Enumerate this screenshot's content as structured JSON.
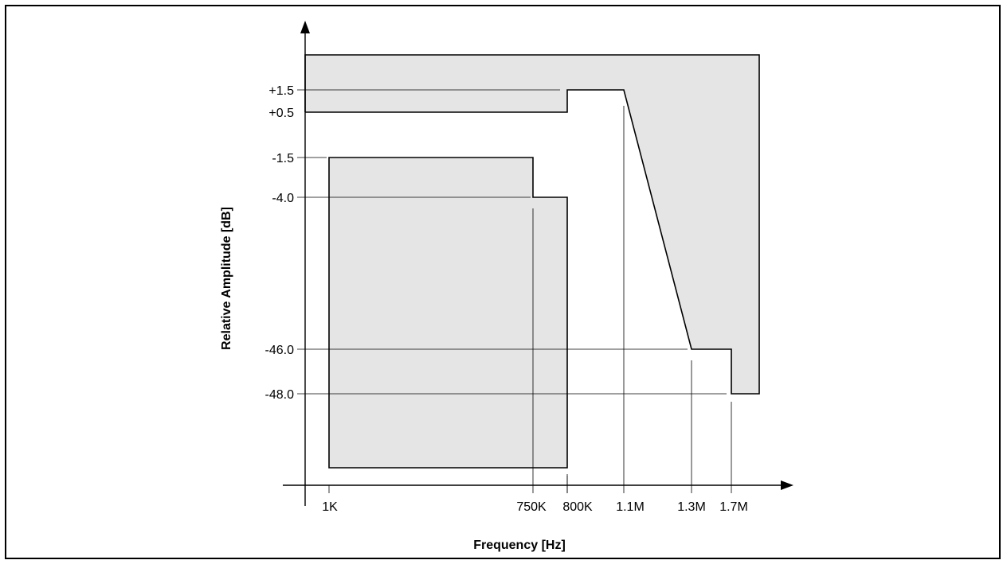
{
  "chart_data": {
    "type": "line",
    "title": "",
    "xlabel": "Frequency [Hz]",
    "ylabel": "Relative Amplitude [dB]",
    "x_tick_labels": [
      "1K",
      "750K",
      "800K",
      "1.1M",
      "1.3M",
      "1.7M"
    ],
    "y_tick_labels": [
      "+1.5",
      "+0.5",
      "-1.5",
      "-4.0",
      "-46.0",
      "-48.0"
    ],
    "series": [
      {
        "role": "upper-limit-mask",
        "points": [
          {
            "x": "1K",
            "y": 0.5
          },
          {
            "x": "800K",
            "y": 0.5
          },
          {
            "x": "800K",
            "y": 1.5
          },
          {
            "x": "1.1M",
            "y": 1.5
          },
          {
            "x": "1.3M",
            "y": -46.0
          },
          {
            "x": "1.7M",
            "y": -46.0
          },
          {
            "x": "1.7M",
            "y": -48.0
          }
        ]
      },
      {
        "role": "lower-limit-mask",
        "points": [
          {
            "x": "1K",
            "y": -1.5
          },
          {
            "x": "750K",
            "y": -1.5
          },
          {
            "x": "750K",
            "y": -4.0
          },
          {
            "x": "800K",
            "y": -4.0
          }
        ]
      }
    ],
    "colors": {
      "mask_fill": "#e5e5e5",
      "line": "#000000"
    }
  }
}
